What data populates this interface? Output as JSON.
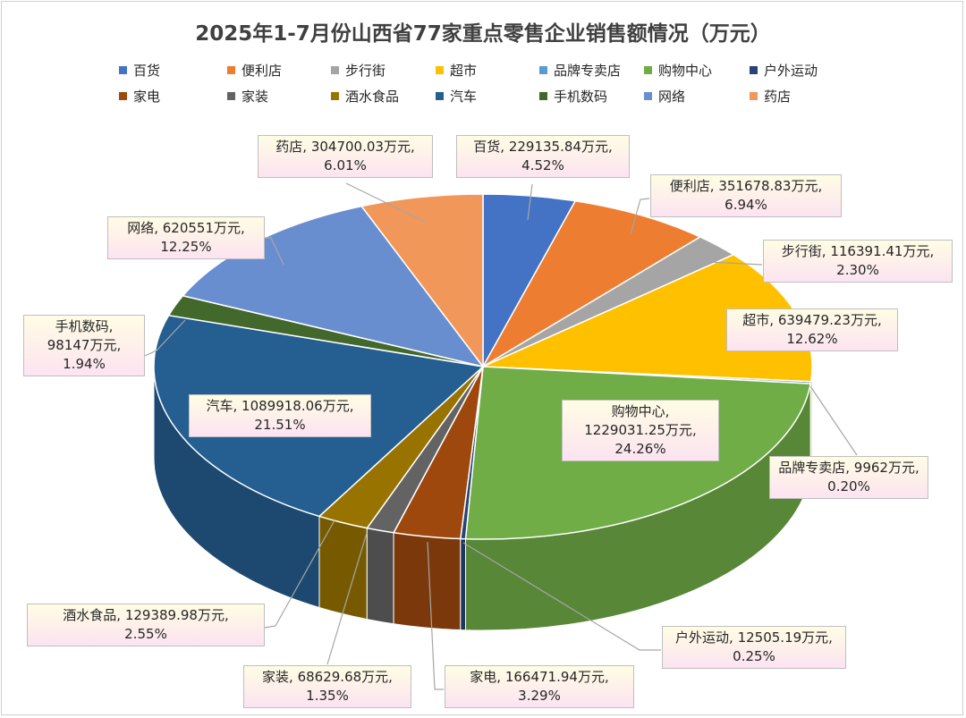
{
  "title": "2025年1-7月份山西省77家重点零售企业销售额情况（万元）",
  "legend": [
    "百货",
    "便利店",
    "步行街",
    "超市",
    "品牌专卖店",
    "购物中心",
    "户外运动",
    "家电",
    "家装",
    "酒水食品",
    "汽车",
    "手机数码",
    "网络",
    "药店"
  ],
  "chart_data": {
    "type": "pie",
    "title": "2025年1-7月份山西省77家重点零售企业销售额情况（万元）",
    "unit": "万元",
    "legend_position": "top",
    "slices": [
      {
        "name": "百货",
        "value": 229135.84,
        "percent": 4.52,
        "value_label": "229135.84万元",
        "percent_label": "4.52%",
        "color": "#4472c4"
      },
      {
        "name": "便利店",
        "value": 351678.83,
        "percent": 6.94,
        "value_label": "351678.83万元",
        "percent_label": "6.94%",
        "color": "#ed7d31"
      },
      {
        "name": "步行街",
        "value": 116391.41,
        "percent": 2.3,
        "value_label": "116391.41万元",
        "percent_label": "2.30%",
        "color": "#a5a5a5"
      },
      {
        "name": "超市",
        "value": 639479.23,
        "percent": 12.62,
        "value_label": "639479.23万元",
        "percent_label": "12.62%",
        "color": "#ffc000"
      },
      {
        "name": "品牌专卖店",
        "value": 9962,
        "percent": 0.2,
        "value_label": "9962万元",
        "percent_label": "0.20%",
        "color": "#5b9bd5"
      },
      {
        "name": "购物中心",
        "value": 1229031.25,
        "percent": 24.26,
        "value_label": "1229031.25万元",
        "percent_label": "24.26%",
        "color": "#70ad47"
      },
      {
        "name": "户外运动",
        "value": 12505.19,
        "percent": 0.25,
        "value_label": "12505.19万元",
        "percent_label": "0.25%",
        "color": "#264478"
      },
      {
        "name": "家电",
        "value": 166471.94,
        "percent": 3.29,
        "value_label": "166471.94万元",
        "percent_label": "3.29%",
        "color": "#9e480e"
      },
      {
        "name": "家装",
        "value": 68629.68,
        "percent": 1.35,
        "value_label": "68629.68万元",
        "percent_label": "1.35%",
        "color": "#636363"
      },
      {
        "name": "酒水食品",
        "value": 129389.98,
        "percent": 2.55,
        "value_label": "129389.98万元",
        "percent_label": "2.55%",
        "color": "#997300"
      },
      {
        "name": "汽车",
        "value": 1089918.06,
        "percent": 21.51,
        "value_label": "1089918.06万元",
        "percent_label": "21.51%",
        "color": "#255e91"
      },
      {
        "name": "手机数码",
        "value": 98147,
        "percent": 1.94,
        "value_label": "98147万元",
        "percent_label": "1.94%",
        "color": "#43682b"
      },
      {
        "name": "网络",
        "value": 620551,
        "percent": 12.25,
        "value_label": "620551万元",
        "percent_label": "12.25%",
        "color": "#698ed0"
      },
      {
        "name": "药店",
        "value": 304700.03,
        "percent": 6.01,
        "value_label": "304700.03万元",
        "percent_label": "6.01%",
        "color": "#f1975a"
      }
    ]
  }
}
